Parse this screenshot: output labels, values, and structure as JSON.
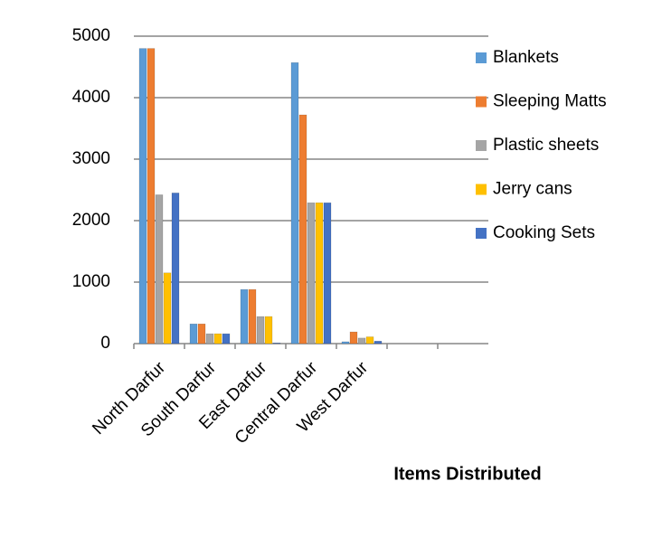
{
  "chart_data": {
    "type": "bar",
    "x_label": "Items Distributed",
    "categories": [
      "North Darfur",
      "South Darfur",
      "East Darfur",
      "Central Darfur",
      "West Darfur",
      null,
      null
    ],
    "series": [
      {
        "name": "Blankets",
        "color": "#5b9bd5",
        "values": [
          4800,
          320,
          880,
          4570,
          30,
          null,
          null
        ]
      },
      {
        "name": "Sleeping Matts",
        "color": "#ed7d31",
        "values": [
          4800,
          320,
          880,
          3720,
          190,
          null,
          null
        ]
      },
      {
        "name": "Plastic sheets",
        "color": "#a5a5a5",
        "values": [
          2420,
          160,
          440,
          2290,
          90,
          null,
          null
        ]
      },
      {
        "name": "Jerry cans",
        "color": "#ffc000",
        "values": [
          1150,
          160,
          440,
          2290,
          110,
          null,
          null
        ]
      },
      {
        "name": "Cooking Sets",
        "color": "#4472c4",
        "values": [
          2450,
          160,
          10,
          2290,
          40,
          null,
          null
        ]
      }
    ],
    "ylim": [
      0,
      5000
    ],
    "yticks": [
      0,
      1000,
      2000,
      3000,
      4000,
      5000
    ],
    "grid": true,
    "legend": "right"
  }
}
